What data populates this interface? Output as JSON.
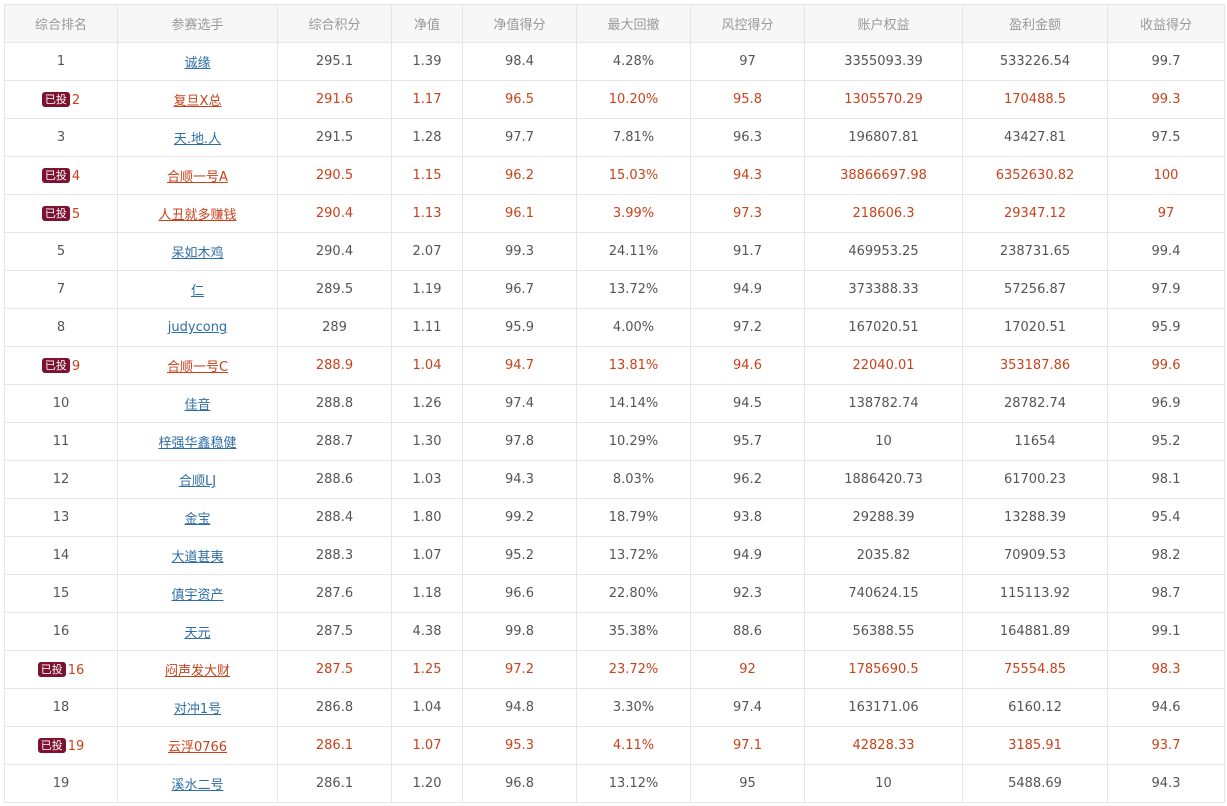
{
  "columns": [
    "综合排名",
    "参赛选手",
    "综合积分",
    "净值",
    "净值得分",
    "最大回撤",
    "风控得分",
    "账户权益",
    "盈利金额",
    "收益得分"
  ],
  "badge_label": "已投",
  "colors": {
    "invested_text": "#c8421b",
    "link": "#2f6ea5",
    "badge_bg": "#7d1230",
    "header_bg": "#f7f7f7"
  },
  "rows": [
    {
      "rank": "1",
      "invested": false,
      "player": "诚缘",
      "score": "295.1",
      "nav": "1.39",
      "nav_score": "98.4",
      "max_drawdown": "4.28%",
      "risk_score": "97",
      "equity": "3355093.39",
      "profit": "533226.54",
      "return_score": "99.7"
    },
    {
      "rank": "2",
      "invested": true,
      "player": "复旦X总",
      "score": "291.6",
      "nav": "1.17",
      "nav_score": "96.5",
      "max_drawdown": "10.20%",
      "risk_score": "95.8",
      "equity": "1305570.29",
      "profit": "170488.5",
      "return_score": "99.3"
    },
    {
      "rank": "3",
      "invested": false,
      "player": "天.地.人",
      "score": "291.5",
      "nav": "1.28",
      "nav_score": "97.7",
      "max_drawdown": "7.81%",
      "risk_score": "96.3",
      "equity": "196807.81",
      "profit": "43427.81",
      "return_score": "97.5"
    },
    {
      "rank": "4",
      "invested": true,
      "player": "合顺一号A",
      "score": "290.5",
      "nav": "1.15",
      "nav_score": "96.2",
      "max_drawdown": "15.03%",
      "risk_score": "94.3",
      "equity": "38866697.98",
      "profit": "6352630.82",
      "return_score": "100"
    },
    {
      "rank": "5",
      "invested": true,
      "player": "人丑就多赚钱",
      "score": "290.4",
      "nav": "1.13",
      "nav_score": "96.1",
      "max_drawdown": "3.99%",
      "risk_score": "97.3",
      "equity": "218606.3",
      "profit": "29347.12",
      "return_score": "97"
    },
    {
      "rank": "5",
      "invested": false,
      "player": "呆如木鸡",
      "score": "290.4",
      "nav": "2.07",
      "nav_score": "99.3",
      "max_drawdown": "24.11%",
      "risk_score": "91.7",
      "equity": "469953.25",
      "profit": "238731.65",
      "return_score": "99.4"
    },
    {
      "rank": "7",
      "invested": false,
      "player": "仁",
      "score": "289.5",
      "nav": "1.19",
      "nav_score": "96.7",
      "max_drawdown": "13.72%",
      "risk_score": "94.9",
      "equity": "373388.33",
      "profit": "57256.87",
      "return_score": "97.9"
    },
    {
      "rank": "8",
      "invested": false,
      "player": "judycong",
      "score": "289",
      "nav": "1.11",
      "nav_score": "95.9",
      "max_drawdown": "4.00%",
      "risk_score": "97.2",
      "equity": "167020.51",
      "profit": "17020.51",
      "return_score": "95.9"
    },
    {
      "rank": "9",
      "invested": true,
      "player": "合顺一号C",
      "score": "288.9",
      "nav": "1.04",
      "nav_score": "94.7",
      "max_drawdown": "13.81%",
      "risk_score": "94.6",
      "equity": "22040.01",
      "profit": "353187.86",
      "return_score": "99.6"
    },
    {
      "rank": "10",
      "invested": false,
      "player": "佳音",
      "score": "288.8",
      "nav": "1.26",
      "nav_score": "97.4",
      "max_drawdown": "14.14%",
      "risk_score": "94.5",
      "equity": "138782.74",
      "profit": "28782.74",
      "return_score": "96.9"
    },
    {
      "rank": "11",
      "invested": false,
      "player": "梓强华鑫稳健",
      "score": "288.7",
      "nav": "1.30",
      "nav_score": "97.8",
      "max_drawdown": "10.29%",
      "risk_score": "95.7",
      "equity": "10",
      "profit": "11654",
      "return_score": "95.2"
    },
    {
      "rank": "12",
      "invested": false,
      "player": "合顺LJ",
      "score": "288.6",
      "nav": "1.03",
      "nav_score": "94.3",
      "max_drawdown": "8.03%",
      "risk_score": "96.2",
      "equity": "1886420.73",
      "profit": "61700.23",
      "return_score": "98.1"
    },
    {
      "rank": "13",
      "invested": false,
      "player": "金宝",
      "score": "288.4",
      "nav": "1.80",
      "nav_score": "99.2",
      "max_drawdown": "18.79%",
      "risk_score": "93.8",
      "equity": "29288.39",
      "profit": "13288.39",
      "return_score": "95.4"
    },
    {
      "rank": "14",
      "invested": false,
      "player": "大道甚夷",
      "score": "288.3",
      "nav": "1.07",
      "nav_score": "95.2",
      "max_drawdown": "13.72%",
      "risk_score": "94.9",
      "equity": "2035.82",
      "profit": "70909.53",
      "return_score": "98.2"
    },
    {
      "rank": "15",
      "invested": false,
      "player": "傎宇资产",
      "score": "287.6",
      "nav": "1.18",
      "nav_score": "96.6",
      "max_drawdown": "22.80%",
      "risk_score": "92.3",
      "equity": "740624.15",
      "profit": "115113.92",
      "return_score": "98.7"
    },
    {
      "rank": "16",
      "invested": false,
      "player": "天元",
      "score": "287.5",
      "nav": "4.38",
      "nav_score": "99.8",
      "max_drawdown": "35.38%",
      "risk_score": "88.6",
      "equity": "56388.55",
      "profit": "164881.89",
      "return_score": "99.1"
    },
    {
      "rank": "16",
      "invested": true,
      "player": "闷声发大财",
      "score": "287.5",
      "nav": "1.25",
      "nav_score": "97.2",
      "max_drawdown": "23.72%",
      "risk_score": "92",
      "equity": "1785690.5",
      "profit": "75554.85",
      "return_score": "98.3"
    },
    {
      "rank": "18",
      "invested": false,
      "player": "对冲1号",
      "score": "286.8",
      "nav": "1.04",
      "nav_score": "94.8",
      "max_drawdown": "3.30%",
      "risk_score": "97.4",
      "equity": "163171.06",
      "profit": "6160.12",
      "return_score": "94.6"
    },
    {
      "rank": "19",
      "invested": true,
      "player": "云浮0766",
      "score": "286.1",
      "nav": "1.07",
      "nav_score": "95.3",
      "max_drawdown": "4.11%",
      "risk_score": "97.1",
      "equity": "42828.33",
      "profit": "3185.91",
      "return_score": "93.7"
    },
    {
      "rank": "19",
      "invested": false,
      "player": "溪水二号",
      "score": "286.1",
      "nav": "1.20",
      "nav_score": "96.8",
      "max_drawdown": "13.12%",
      "risk_score": "95",
      "equity": "10",
      "profit": "5488.69",
      "return_score": "94.3"
    }
  ]
}
